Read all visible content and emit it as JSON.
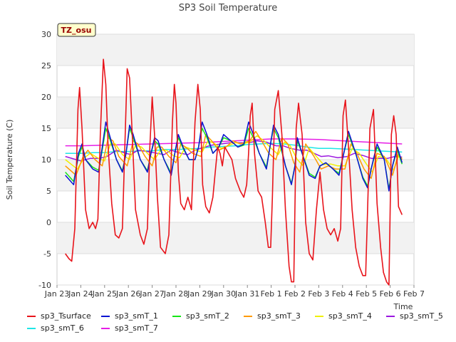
{
  "chart_data": {
    "type": "line",
    "title": "SP3 Soil Temperature",
    "ylabel": "Soil Temperature (C)",
    "xlabel": "Time",
    "badge": "TZ_osu",
    "ylim": [
      -10,
      30
    ],
    "xlim": [
      0,
      15
    ],
    "yticks": [
      -10,
      -5,
      0,
      5,
      10,
      15,
      20,
      25,
      30
    ],
    "xticks": [
      {
        "x": 0,
        "label": "Jan 23"
      },
      {
        "x": 1,
        "label": "Jan 24"
      },
      {
        "x": 2,
        "label": "Jan 25"
      },
      {
        "x": 3,
        "label": "Jan 26"
      },
      {
        "x": 4,
        "label": "Jan 27"
      },
      {
        "x": 5,
        "label": "Jan 28"
      },
      {
        "x": 6,
        "label": "Jan 29"
      },
      {
        "x": 7,
        "label": "Jan 30"
      },
      {
        "x": 8,
        "label": "Jan 31"
      },
      {
        "x": 9,
        "label": "Feb 1"
      },
      {
        "x": 10,
        "label": "Feb 2"
      },
      {
        "x": 11,
        "label": "Feb 3"
      },
      {
        "x": 12,
        "label": "Feb 4"
      },
      {
        "x": 13,
        "label": "Feb 5"
      },
      {
        "x": 14,
        "label": "Feb 6"
      },
      {
        "x": 15,
        "label": "Feb 7"
      }
    ],
    "grid": true,
    "series": [
      {
        "name": "sp3_Tsurface",
        "color": "#e8141b",
        "x": [
          0.35,
          0.5,
          0.62,
          0.75,
          0.88,
          0.95,
          1.05,
          1.2,
          1.35,
          1.5,
          1.62,
          1.72,
          1.82,
          1.95,
          2.05,
          2.15,
          2.3,
          2.45,
          2.6,
          2.75,
          2.85,
          2.95,
          3.05,
          3.15,
          3.3,
          3.5,
          3.65,
          3.8,
          3.9,
          4.0,
          4.1,
          4.22,
          4.35,
          4.55,
          4.7,
          4.85,
          4.93,
          5.0,
          5.1,
          5.2,
          5.35,
          5.5,
          5.65,
          5.8,
          5.92,
          6.02,
          6.12,
          6.25,
          6.4,
          6.55,
          6.65,
          6.75,
          6.85,
          6.95,
          7.05,
          7.2,
          7.35,
          7.5,
          7.7,
          7.85,
          7.97,
          8.05,
          8.12,
          8.2,
          8.3,
          8.45,
          8.6,
          8.75,
          8.88,
          8.98,
          9.05,
          9.15,
          9.3,
          9.45,
          9.6,
          9.75,
          9.85,
          9.95,
          10.05,
          10.15,
          10.3,
          10.45,
          10.6,
          10.75,
          10.9,
          11.05,
          11.2,
          11.35,
          11.5,
          11.65,
          11.8,
          11.92,
          12.02,
          12.12,
          12.25,
          12.4,
          12.55,
          12.7,
          12.85,
          12.97,
          13.05,
          13.15,
          13.3,
          13.45,
          13.6,
          13.72,
          13.85,
          13.95,
          14.05,
          14.15,
          14.25,
          14.35,
          14.5
        ],
        "values": [
          -5,
          -5.8,
          -6.2,
          -1,
          18,
          21.5,
          15,
          2,
          -1,
          0,
          -1,
          0.5,
          14,
          26,
          22,
          12,
          3,
          -2,
          -2.5,
          -1,
          12,
          24.5,
          23,
          15,
          2,
          -2,
          -3.5,
          -1,
          12,
          20,
          14,
          4,
          -4,
          -5,
          -2,
          16,
          22,
          19,
          8,
          3,
          2,
          4,
          2,
          16,
          22,
          18,
          6,
          2.5,
          1.5,
          4,
          8,
          12,
          11,
          9,
          12,
          11,
          10,
          7,
          5,
          4,
          6,
          11,
          17,
          19,
          11,
          5,
          4,
          0,
          -4,
          -4,
          4,
          18,
          21,
          14,
          2,
          -7,
          -9.5,
          -9.5,
          15,
          19,
          14,
          0,
          -5,
          -6,
          2,
          8,
          2,
          -1,
          -2,
          -1,
          -3,
          -1,
          17,
          19.5,
          12,
          2,
          -4,
          -7,
          -8.5,
          -8.5,
          2,
          15,
          18,
          3,
          -4,
          -8,
          -9.5,
          -10,
          14,
          17,
          14,
          2.5,
          1.2
        ]
      },
      {
        "name": "sp3_smT_1",
        "color": "#0a14d2",
        "x": [
          0.35,
          0.7,
          0.9,
          1.05,
          1.2,
          1.5,
          1.75,
          1.9,
          2.05,
          2.2,
          2.5,
          2.75,
          2.9,
          3.05,
          3.2,
          3.5,
          3.8,
          3.95,
          4.1,
          4.25,
          4.5,
          4.8,
          4.95,
          5.1,
          5.3,
          5.55,
          5.8,
          5.95,
          6.1,
          6.3,
          6.55,
          6.8,
          7.0,
          7.3,
          7.6,
          7.85,
          8.05,
          8.25,
          8.5,
          8.8,
          8.95,
          9.1,
          9.3,
          9.6,
          9.85,
          10.0,
          10.1,
          10.3,
          10.6,
          10.85,
          11.05,
          11.3,
          11.6,
          11.85,
          12.05,
          12.25,
          12.55,
          12.85,
          13.05,
          13.2,
          13.45,
          13.75,
          13.95,
          14.1,
          14.3,
          14.5
        ],
        "values": [
          7.5,
          6,
          11,
          12.5,
          10,
          8.5,
          8,
          12,
          16,
          14,
          10,
          8,
          11,
          15.5,
          14,
          10,
          8,
          11,
          13.5,
          13,
          10,
          7.5,
          11,
          14,
          12,
          10,
          10,
          12,
          16,
          14,
          11,
          12,
          14,
          13,
          12,
          12.5,
          16,
          14,
          11,
          8.5,
          12,
          15.5,
          14,
          9,
          6,
          9,
          13.5,
          11,
          7.5,
          7,
          9,
          9.5,
          8.5,
          7.5,
          11,
          14.5,
          11,
          7,
          5.5,
          8.5,
          12.5,
          10,
          5,
          9,
          12,
          9.5
        ]
      },
      {
        "name": "sp3_smT_2",
        "color": "#16e616",
        "x": [
          0.35,
          0.7,
          0.9,
          1.05,
          1.2,
          1.5,
          1.75,
          1.9,
          2.05,
          2.2,
          2.5,
          2.75,
          2.9,
          3.05,
          3.2,
          3.5,
          3.8,
          3.95,
          4.1,
          4.25,
          4.5,
          4.8,
          4.95,
          5.1,
          5.3,
          5.55,
          5.8,
          5.95,
          6.1,
          6.3,
          6.55,
          6.8,
          7.0,
          7.3,
          7.6,
          7.85,
          8.05,
          8.25,
          8.5,
          8.8,
          8.95,
          9.1,
          9.3,
          9.6,
          9.85,
          10.0,
          10.1,
          10.3,
          10.6,
          10.85,
          11.05,
          11.3,
          11.6,
          11.85,
          12.05,
          12.25,
          12.55,
          12.85,
          13.05,
          13.2,
          13.45,
          13.75,
          13.95,
          14.1,
          14.3,
          14.5
        ],
        "values": [
          8,
          6.5,
          10.5,
          12,
          10,
          8.8,
          8.3,
          11.5,
          15,
          13.5,
          10,
          8.2,
          11,
          15,
          13.5,
          10,
          8.2,
          11,
          13,
          12.5,
          10,
          7.8,
          11,
          13.5,
          11.8,
          10,
          10,
          12,
          15,
          13.5,
          11,
          12,
          13.5,
          13,
          12,
          12.3,
          15,
          13.5,
          11,
          8.8,
          12,
          15,
          13.5,
          9,
          6.2,
          9,
          13,
          11,
          7.8,
          7.2,
          9,
          9.5,
          8.5,
          7.8,
          11,
          14,
          11,
          7.2,
          5.8,
          8.5,
          12,
          10,
          5.3,
          9,
          11.5,
          9.3
        ]
      },
      {
        "name": "sp3_smT_3",
        "color": "#ff9a00",
        "x": [
          0.35,
          0.8,
          1.1,
          1.3,
          1.6,
          1.9,
          2.15,
          2.35,
          2.6,
          2.95,
          3.2,
          3.4,
          3.7,
          4.0,
          4.2,
          4.4,
          4.7,
          5.0,
          5.2,
          5.4,
          5.7,
          6.05,
          6.25,
          6.5,
          6.8,
          7.1,
          7.4,
          7.7,
          8.1,
          8.35,
          8.6,
          8.9,
          9.2,
          9.45,
          9.7,
          9.95,
          10.2,
          10.45,
          10.8,
          11.1,
          11.4,
          11.7,
          12.1,
          12.35,
          12.6,
          12.9,
          13.2,
          13.45,
          13.75,
          14.1,
          14.35,
          14.5
        ],
        "values": [
          9,
          7.5,
          10.5,
          11.5,
          10,
          9,
          13.5,
          13,
          10.5,
          9,
          13,
          12.5,
          10.5,
          9,
          12,
          12,
          10.5,
          9.5,
          12.5,
          12,
          11,
          10.5,
          14,
          13,
          11.5,
          12,
          13,
          12.5,
          13,
          14.5,
          13,
          11,
          10,
          13.5,
          12.5,
          9.5,
          8,
          12.5,
          10.5,
          8.5,
          9,
          8.5,
          8.5,
          12.5,
          11,
          8.5,
          7,
          11,
          10.5,
          7.5,
          11,
          10
        ]
      },
      {
        "name": "sp3_smT_4",
        "color": "#f0f000",
        "x": [
          0.35,
          0.85,
          1.15,
          1.4,
          1.7,
          2.0,
          2.25,
          2.45,
          2.75,
          3.05,
          3.3,
          3.55,
          3.85,
          4.1,
          4.35,
          4.6,
          4.9,
          5.15,
          5.4,
          5.7,
          6.1,
          6.35,
          6.6,
          6.9,
          7.2,
          7.5,
          7.8,
          8.1,
          8.4,
          8.7,
          9.0,
          9.3,
          9.55,
          9.8,
          10.1,
          10.35,
          10.6,
          10.9,
          11.2,
          11.5,
          11.8,
          12.1,
          12.4,
          12.7,
          13.0,
          13.25,
          13.5,
          13.8,
          14.15,
          14.35,
          14.5
        ],
        "values": [
          10,
          8.5,
          10.3,
          11,
          10.3,
          9.8,
          12.5,
          12.5,
          10.8,
          10,
          12.3,
          12,
          10.8,
          10,
          11.5,
          11.5,
          10.6,
          10.3,
          12,
          11.6,
          11.2,
          13,
          12.6,
          11.8,
          12.2,
          12.7,
          12.5,
          12.8,
          13.8,
          13,
          11.8,
          10.8,
          12.8,
          12.2,
          10,
          9,
          11.8,
          10.5,
          9.2,
          9.3,
          9,
          9,
          11.8,
          11,
          9.3,
          8,
          10.5,
          10.3,
          8.3,
          10.5,
          10.2
        ]
      },
      {
        "name": "sp3_smT_5",
        "color": "#9b17e0",
        "x": [
          0.35,
          0.8,
          1.0,
          1.4,
          1.8,
          2.1,
          2.5,
          2.9,
          3.1,
          3.4,
          3.8,
          4.2,
          4.5,
          4.8,
          5.2,
          5.5,
          5.8,
          6.2,
          6.5,
          6.9,
          7.3,
          7.7,
          8.1,
          8.4,
          8.8,
          9.2,
          9.5,
          9.8,
          10.2,
          10.5,
          10.8,
          11.1,
          11.4,
          11.8,
          12.2,
          12.5,
          12.9,
          13.2,
          13.5,
          13.9,
          14.2,
          14.5
        ],
        "values": [
          10.5,
          10,
          9.8,
          10.2,
          10.2,
          10.5,
          11.5,
          11,
          10.8,
          11.5,
          11.3,
          11,
          10.8,
          11.5,
          11,
          10.8,
          11.5,
          12,
          12.3,
          12.5,
          12.7,
          12.7,
          12.7,
          13,
          12.8,
          12.2,
          12.2,
          11.8,
          11.5,
          11.5,
          11,
          10.5,
          10.6,
          10.3,
          10.5,
          11,
          10.6,
          10.2,
          10.2,
          10.2,
          10.5,
          10.4
        ]
      },
      {
        "name": "sp3_smT_6",
        "color": "#1ee6e6",
        "x": [
          0.35,
          1.0,
          1.5,
          2.0,
          2.5,
          3.0,
          3.5,
          4.0,
          4.5,
          5.0,
          5.5,
          6.0,
          6.5,
          7.0,
          7.5,
          8.0,
          8.5,
          9.0,
          9.5,
          10.0,
          10.5,
          11.0,
          11.5,
          12.0,
          12.5,
          13.0,
          13.5,
          14.0,
          14.5
        ],
        "values": [
          11,
          11,
          11.1,
          11.1,
          11.3,
          11.3,
          11.4,
          11.4,
          11.6,
          11.6,
          11.7,
          11.8,
          12,
          12.1,
          12.2,
          12.4,
          12.5,
          12.6,
          12.5,
          12.3,
          12,
          11.8,
          11.8,
          11.7,
          11.6,
          11.5,
          11.4,
          11.3,
          11.2
        ]
      },
      {
        "name": "sp3_smT_7",
        "color": "#e61ee6",
        "x": [
          0.35,
          1.0,
          2.0,
          3.0,
          4.0,
          5.0,
          6.0,
          7.0,
          8.0,
          9.0,
          10.0,
          11.0,
          12.0,
          13.0,
          14.0,
          14.5
        ],
        "values": [
          12.2,
          12.2,
          12.3,
          12.4,
          12.5,
          12.6,
          12.7,
          12.9,
          13.1,
          13.3,
          13.3,
          13.2,
          13,
          12.8,
          12.6,
          12.5
        ]
      }
    ]
  }
}
